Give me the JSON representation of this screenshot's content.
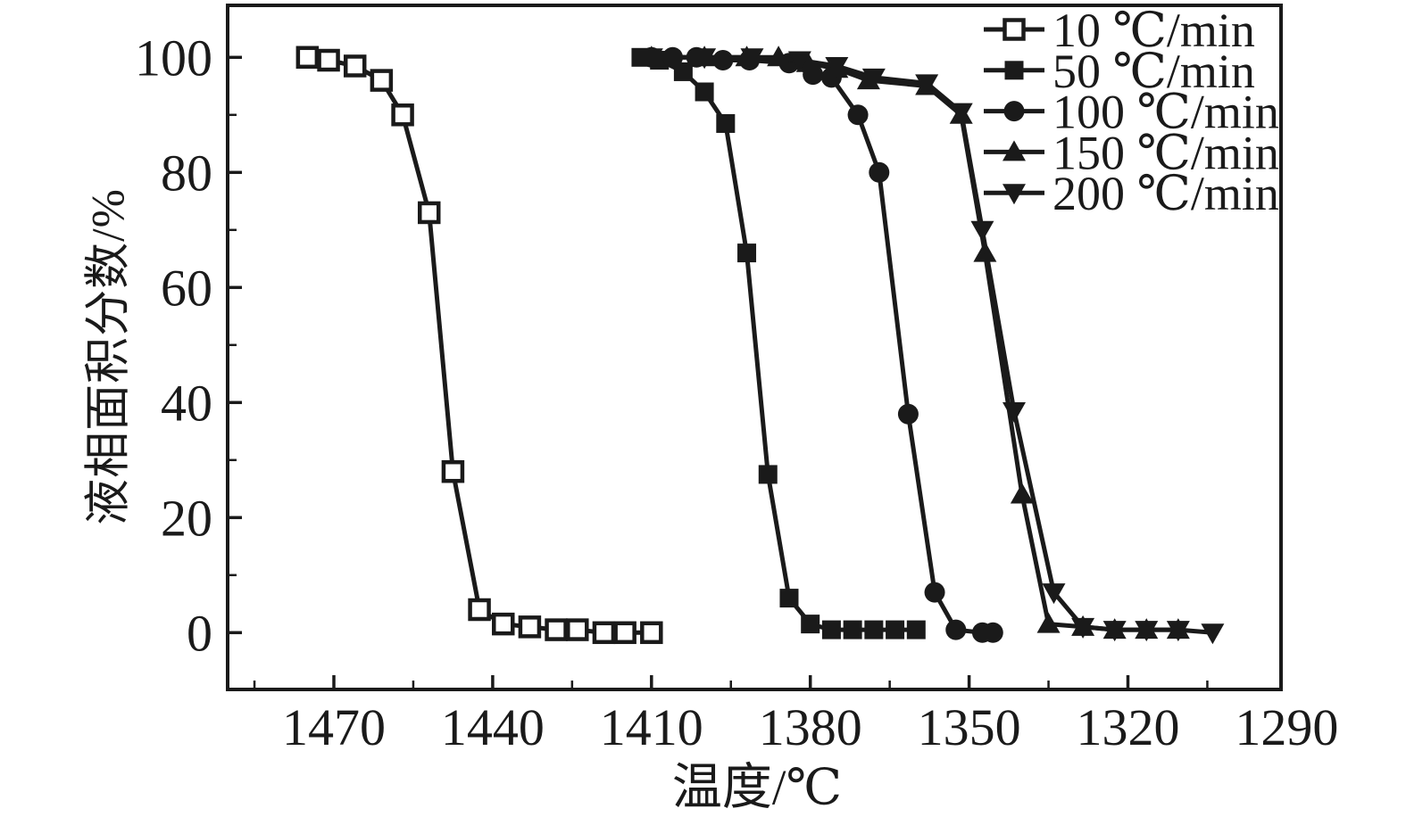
{
  "window": {
    "background": "#ffffff",
    "foreground": "#1a1a1a"
  },
  "chart_data": {
    "type": "line",
    "title": "",
    "xlabel": "温度/℃",
    "ylabel": "液相面积分数/%",
    "x_axis": {
      "ticks": [
        1470,
        1440,
        1410,
        1380,
        1350,
        1320,
        1290
      ],
      "minor_ticks": [
        1485,
        1455,
        1425,
        1395,
        1365,
        1335,
        1305
      ],
      "range": [
        1490,
        1291
      ],
      "reversed": true,
      "unit": "℃"
    },
    "y_axis": {
      "ticks": [
        0,
        20,
        40,
        60,
        80,
        100
      ],
      "minor_ticks": [
        10,
        30,
        50,
        70,
        90
      ],
      "range": [
        -10,
        109
      ],
      "unit": "%"
    },
    "grid": false,
    "legend": {
      "position": "top-right",
      "entries": [
        "10 ℃/min",
        "50 ℃/min",
        "100 ℃/min",
        "150 ℃/min",
        "200 ℃/min"
      ]
    },
    "line_color": "#1a1a1a",
    "series": [
      {
        "name": "10 ℃/min",
        "marker": "open-square",
        "points": [
          [
            1475,
            100
          ],
          [
            1471,
            99.5
          ],
          [
            1466,
            98.5
          ],
          [
            1461,
            96
          ],
          [
            1457,
            90
          ],
          [
            1452,
            73
          ],
          [
            1447.5,
            28
          ],
          [
            1442.5,
            4
          ],
          [
            1438,
            1.5
          ],
          [
            1433,
            1
          ],
          [
            1428,
            0.5
          ],
          [
            1424,
            0.5
          ],
          [
            1419,
            0
          ],
          [
            1415,
            0
          ],
          [
            1410,
            0
          ]
        ]
      },
      {
        "name": "50 ℃/min",
        "marker": "filled-square",
        "points": [
          [
            1412,
            100
          ],
          [
            1408.5,
            99.5
          ],
          [
            1404,
            97.5
          ],
          [
            1400,
            94
          ],
          [
            1396,
            88.5
          ],
          [
            1392,
            66
          ],
          [
            1388,
            27.5
          ],
          [
            1384,
            6
          ],
          [
            1380,
            1.5
          ],
          [
            1376,
            0.5
          ],
          [
            1372,
            0.5
          ],
          [
            1368,
            0.5
          ],
          [
            1364,
            0.5
          ],
          [
            1360,
            0.5
          ]
        ]
      },
      {
        "name": "100 ℃/min",
        "marker": "filled-circle",
        "points": [
          [
            1410,
            100
          ],
          [
            1406,
            100
          ],
          [
            1401.5,
            100
          ],
          [
            1396.5,
            99.5
          ],
          [
            1391.5,
            99.5
          ],
          [
            1384,
            99
          ],
          [
            1379.5,
            97
          ],
          [
            1376,
            96.5
          ],
          [
            1371,
            90
          ],
          [
            1367,
            80
          ],
          [
            1361.5,
            38
          ],
          [
            1356.5,
            7
          ],
          [
            1352.5,
            0.5
          ],
          [
            1347.5,
            0
          ],
          [
            1345.5,
            0
          ]
        ]
      },
      {
        "name": "150 ℃/min",
        "marker": "filled-triangle-up",
        "points": [
          [
            1410,
            100
          ],
          [
            1400,
            100
          ],
          [
            1392,
            100
          ],
          [
            1386,
            100
          ],
          [
            1380.5,
            99
          ],
          [
            1375,
            98
          ],
          [
            1369,
            96
          ],
          [
            1358,
            95
          ],
          [
            1351.5,
            90
          ],
          [
            1347,
            66
          ],
          [
            1340,
            24
          ],
          [
            1335,
            1.5
          ],
          [
            1328.5,
            1
          ],
          [
            1322.5,
            0.5
          ],
          [
            1316.5,
            0.5
          ],
          [
            1310.5,
            0.5
          ]
        ]
      },
      {
        "name": "200 ℃/min",
        "marker": "filled-triangle-down",
        "points": [
          [
            1410,
            100
          ],
          [
            1400,
            100
          ],
          [
            1391,
            100
          ],
          [
            1382,
            99.5
          ],
          [
            1375,
            98.5
          ],
          [
            1368,
            96.5
          ],
          [
            1358,
            95.5
          ],
          [
            1351.5,
            90.5
          ],
          [
            1347.5,
            70
          ],
          [
            1341.5,
            38.5
          ],
          [
            1334,
            7
          ],
          [
            1328.5,
            1
          ],
          [
            1322.5,
            0.5
          ],
          [
            1316.5,
            0.5
          ],
          [
            1310.5,
            0.5
          ],
          [
            1304,
            0
          ]
        ]
      }
    ]
  }
}
